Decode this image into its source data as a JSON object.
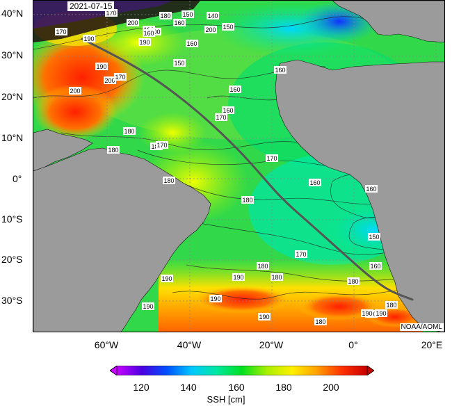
{
  "map": {
    "date": "2021-07-15",
    "credit": "NOAA/AOML",
    "lat_ticks": [
      "40°N",
      "30°N",
      "20°N",
      "10°N",
      "0°",
      "10°S",
      "20°S",
      "30°S"
    ],
    "lon_ticks": [
      "60°W",
      "40°W",
      "20°W",
      "0°",
      "20°E"
    ],
    "contour_labels": [
      "170",
      "180",
      "200",
      "190",
      "170",
      "200",
      "160",
      "150",
      "140",
      "200",
      "190",
      "190",
      "150",
      "160",
      "190",
      "200",
      "170",
      "160",
      "150",
      "200",
      "180",
      "160",
      "160",
      "160",
      "170",
      "180",
      "170",
      "180",
      "170",
      "180",
      "160",
      "180",
      "160",
      "150",
      "170",
      "180",
      "180",
      "180",
      "190",
      "190",
      "190",
      "190",
      "190",
      "180",
      "190",
      "180",
      "190",
      "160",
      "190"
    ],
    "colors": {
      "land": "#9b9b9b",
      "track": "#555555",
      "grid": "#888888"
    }
  },
  "colorbar": {
    "ticks": [
      "120",
      "140",
      "160",
      "180",
      "200"
    ],
    "label": "SSH [cm]",
    "colors": [
      "#c800ff",
      "#4a00e0",
      "#0050ff",
      "#00c8ff",
      "#00e8a0",
      "#00e020",
      "#a8f000",
      "#fff000",
      "#ffa000",
      "#ff3000",
      "#c80000"
    ]
  }
}
